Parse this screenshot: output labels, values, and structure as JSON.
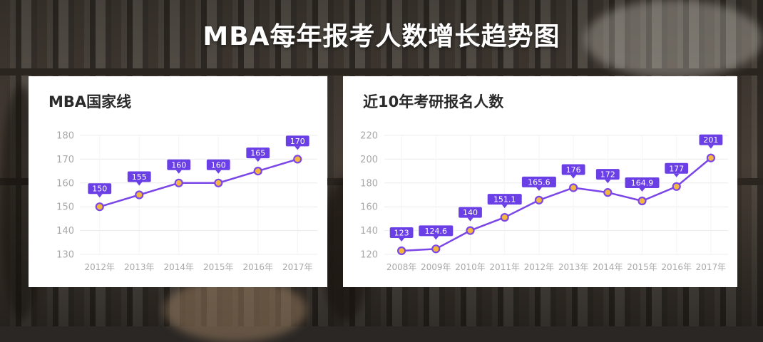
{
  "page_title": "MBA每年报考人数增长趋势图",
  "colors": {
    "line": "#7b46e8",
    "label_bg": "#6b3fe6",
    "point_fill": "#f3b63f",
    "axis_text": "#a8a8a8",
    "grid": "#ececec"
  },
  "chart_data": [
    {
      "type": "line",
      "title": "MBA国家线",
      "categories": [
        "2012年",
        "2013年",
        "2014年",
        "2015年",
        "2016年",
        "2017年"
      ],
      "values": [
        150,
        155,
        160,
        160,
        165,
        170
      ],
      "data_labels": [
        "150",
        "155",
        "160",
        "160",
        "165",
        "170"
      ],
      "yticks": [
        "130",
        "140",
        "150",
        "160",
        "170",
        "180"
      ],
      "ylim": [
        130,
        180
      ],
      "grid": true
    },
    {
      "type": "line",
      "title": "近10年考研报名人数",
      "categories": [
        "2008年",
        "2009年",
        "2010年",
        "2011年",
        "2012年",
        "2013年",
        "2014年",
        "2015年",
        "2016年",
        "2017年"
      ],
      "values": [
        123,
        124.6,
        140,
        151.1,
        165.6,
        176,
        172,
        164.9,
        177,
        201
      ],
      "data_labels": [
        "123",
        "124.6",
        "140",
        "151.1",
        "165.6",
        "176",
        "172",
        "164.9",
        "177",
        "201"
      ],
      "yticks": [
        "120",
        "140",
        "160",
        "180",
        "200",
        "220"
      ],
      "ylim": [
        120,
        220
      ],
      "grid": true
    }
  ]
}
